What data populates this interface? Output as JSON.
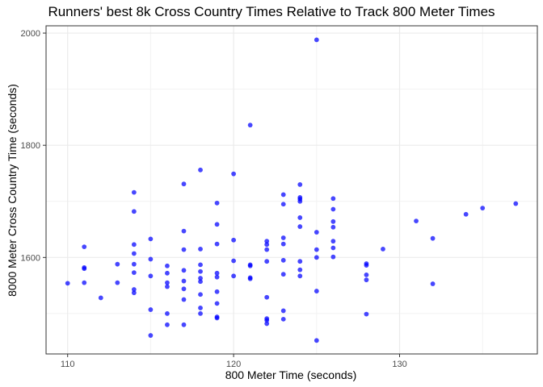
{
  "chart_data": {
    "type": "scatter",
    "title": "Runners' best 8k Cross Country Times Relative to Track 800 Meter Times",
    "xlabel": "800 Meter Time (seconds)",
    "ylabel": "8000 Meter Cross Country Time (seconds)",
    "xlim": [
      108.7,
      138.3
    ],
    "ylim": [
      1428,
      2013
    ],
    "x_ticks": [
      110,
      120,
      130
    ],
    "y_ticks": [
      1600,
      1800,
      2000
    ],
    "grid": true,
    "point_color": "#0000ff",
    "points": [
      [
        110,
        1554
      ],
      [
        111,
        1619
      ],
      [
        111,
        1582
      ],
      [
        111,
        1580
      ],
      [
        111,
        1555
      ],
      [
        112,
        1528
      ],
      [
        113,
        1588
      ],
      [
        113,
        1555
      ],
      [
        114,
        1716
      ],
      [
        114,
        1682
      ],
      [
        114,
        1623
      ],
      [
        114,
        1607
      ],
      [
        114,
        1588
      ],
      [
        114,
        1573
      ],
      [
        114,
        1543
      ],
      [
        114,
        1537
      ],
      [
        115,
        1633
      ],
      [
        115,
        1597
      ],
      [
        115,
        1567
      ],
      [
        115,
        1507
      ],
      [
        115,
        1461
      ],
      [
        116,
        1585
      ],
      [
        116,
        1572
      ],
      [
        116,
        1555
      ],
      [
        116,
        1548
      ],
      [
        116,
        1500
      ],
      [
        116,
        1480
      ],
      [
        117,
        1731
      ],
      [
        117,
        1647
      ],
      [
        117,
        1614
      ],
      [
        117,
        1577
      ],
      [
        117,
        1558
      ],
      [
        117,
        1544
      ],
      [
        117,
        1525
      ],
      [
        117,
        1480
      ],
      [
        118,
        1756
      ],
      [
        118,
        1615
      ],
      [
        118,
        1587
      ],
      [
        118,
        1575
      ],
      [
        118,
        1563
      ],
      [
        118,
        1557
      ],
      [
        118,
        1534
      ],
      [
        118,
        1510
      ],
      [
        118,
        1500
      ],
      [
        119,
        1697
      ],
      [
        119,
        1659
      ],
      [
        119,
        1624
      ],
      [
        119,
        1572
      ],
      [
        119,
        1565
      ],
      [
        119,
        1539
      ],
      [
        119,
        1518
      ],
      [
        119,
        1494
      ],
      [
        119,
        1492
      ],
      [
        120,
        1749
      ],
      [
        120,
        1631
      ],
      [
        120,
        1594
      ],
      [
        120,
        1567
      ],
      [
        121,
        1836
      ],
      [
        121,
        1587
      ],
      [
        121,
        1585
      ],
      [
        121,
        1564
      ],
      [
        121,
        1562
      ],
      [
        122,
        1629
      ],
      [
        122,
        1623
      ],
      [
        122,
        1614
      ],
      [
        122,
        1593
      ],
      [
        122,
        1529
      ],
      [
        122,
        1491
      ],
      [
        122,
        1488
      ],
      [
        122,
        1482
      ],
      [
        123,
        1712
      ],
      [
        123,
        1695
      ],
      [
        123,
        1635
      ],
      [
        123,
        1624
      ],
      [
        123,
        1595
      ],
      [
        123,
        1570
      ],
      [
        123,
        1505
      ],
      [
        123,
        1490
      ],
      [
        124,
        1730
      ],
      [
        124,
        1707
      ],
      [
        124,
        1704
      ],
      [
        124,
        1700
      ],
      [
        124,
        1671
      ],
      [
        124,
        1655
      ],
      [
        124,
        1593
      ],
      [
        124,
        1578
      ],
      [
        124,
        1567
      ],
      [
        125,
        1988
      ],
      [
        125,
        1645
      ],
      [
        125,
        1614
      ],
      [
        125,
        1600
      ],
      [
        125,
        1540
      ],
      [
        125,
        1452
      ],
      [
        126,
        1705
      ],
      [
        126,
        1686
      ],
      [
        126,
        1664
      ],
      [
        126,
        1654
      ],
      [
        126,
        1629
      ],
      [
        126,
        1617
      ],
      [
        126,
        1601
      ],
      [
        128,
        1589
      ],
      [
        128,
        1586
      ],
      [
        128,
        1569
      ],
      [
        128,
        1560
      ],
      [
        128,
        1499
      ],
      [
        129,
        1615
      ],
      [
        131,
        1665
      ],
      [
        132,
        1634
      ],
      [
        132,
        1553
      ],
      [
        134,
        1677
      ],
      [
        135,
        1688
      ],
      [
        137,
        1696
      ]
    ]
  }
}
